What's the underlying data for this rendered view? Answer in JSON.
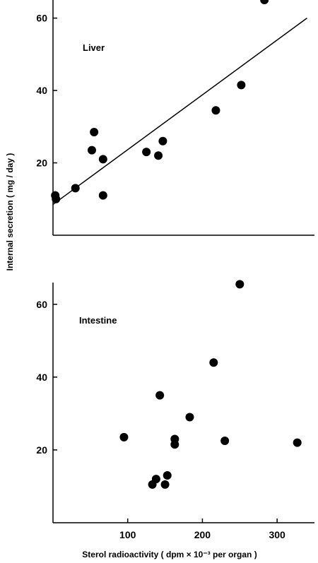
{
  "figure": {
    "ylabel": "Internal secretion ( mg / day )",
    "xlabel": "Sterol radioactivity ( dpm × 10⁻³ per organ )"
  },
  "chart_data": [
    {
      "type": "scatter",
      "panel_label": "Liver",
      "xlim": [
        0,
        350
      ],
      "ylim": [
        0,
        65
      ],
      "yticks": [
        20,
        40,
        60
      ],
      "xticks": [],
      "points": [
        {
          "x": 3,
          "y": 11
        },
        {
          "x": 4,
          "y": 10
        },
        {
          "x": 30,
          "y": 13
        },
        {
          "x": 52,
          "y": 23.5
        },
        {
          "x": 55,
          "y": 28.5
        },
        {
          "x": 67,
          "y": 21
        },
        {
          "x": 67,
          "y": 11
        },
        {
          "x": 125,
          "y": 23
        },
        {
          "x": 141,
          "y": 22
        },
        {
          "x": 147,
          "y": 26
        },
        {
          "x": 218,
          "y": 34.5
        },
        {
          "x": 252,
          "y": 41.5
        },
        {
          "x": 283,
          "y": 65
        }
      ],
      "fit_line": {
        "x": [
          0,
          340
        ],
        "y": [
          8.5,
          60
        ]
      }
    },
    {
      "type": "scatter",
      "panel_label": "Intestine",
      "xlim": [
        0,
        350
      ],
      "ylim": [
        0,
        65
      ],
      "yticks": [
        20,
        40,
        60
      ],
      "xticks": [
        100,
        200,
        300
      ],
      "points": [
        {
          "x": 95,
          "y": 23.5
        },
        {
          "x": 133,
          "y": 10.5
        },
        {
          "x": 138,
          "y": 12
        },
        {
          "x": 143,
          "y": 35
        },
        {
          "x": 150,
          "y": 10.5
        },
        {
          "x": 153,
          "y": 13
        },
        {
          "x": 163,
          "y": 23
        },
        {
          "x": 163,
          "y": 21.5
        },
        {
          "x": 183,
          "y": 29
        },
        {
          "x": 215,
          "y": 44
        },
        {
          "x": 230,
          "y": 22.5
        },
        {
          "x": 250,
          "y": 65.5
        },
        {
          "x": 327,
          "y": 22
        }
      ]
    }
  ]
}
